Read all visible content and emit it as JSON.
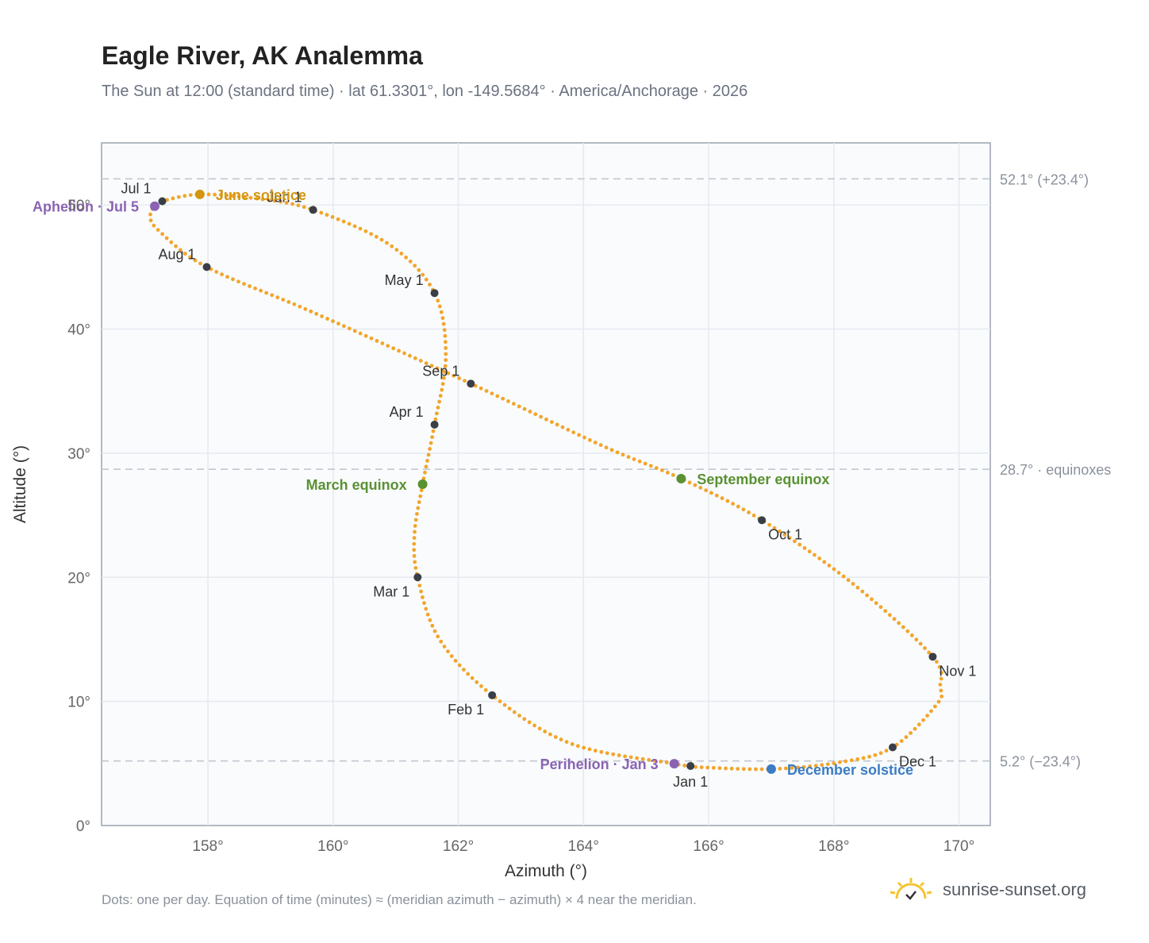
{
  "title": "Eagle River, AK Analemma",
  "subtitle": "The Sun at 12:00 (standard time) · lat 61.3301°, lon -149.5684° · America/Anchorage · 2026",
  "footnote": "Dots: one per day. Equation of time (minutes) ≈ (meridian azimuth − azimuth) × 4 near the meridian.",
  "brand": {
    "name": "sunrise-sunset.org",
    "logo_icon": "sun-check-icon"
  },
  "colors": {
    "curve": "#f2a52b",
    "month_marker": "#3a3f47",
    "solstice_june": "#d4960f",
    "solstice_december": "#3b7cc4",
    "equinox": "#5a9132",
    "apsis": "#8a63b3",
    "reference_line": "#c3c8d0",
    "plot_background": "#f9fbfd",
    "grid": "#e6eaef"
  },
  "chart_data": {
    "type": "scatter",
    "xlabel": "Azimuth (°)",
    "ylabel": "Altitude (°)",
    "xlim": [
      156.3,
      170.5
    ],
    "ylim": [
      0,
      55
    ],
    "x_ticks": [
      158,
      160,
      162,
      164,
      166,
      168,
      170
    ],
    "x_tick_labels": [
      "158°",
      "160°",
      "162°",
      "164°",
      "166°",
      "168°",
      "170°"
    ],
    "y_ticks": [
      0,
      10,
      20,
      30,
      40,
      50
    ],
    "y_tick_labels": [
      "0°",
      "10°",
      "20°",
      "30°",
      "40°",
      "50°"
    ],
    "grid": true,
    "analemma_path": [
      {
        "date": "Jan 1",
        "az": 165.71,
        "alt": 4.8
      },
      {
        "date": "Jan 3",
        "az": 165.45,
        "alt": 4.98
      },
      {
        "date": "Jan 15",
        "az": 163.8,
        "alt": 6.6
      },
      {
        "date": "Feb 1",
        "az": 162.54,
        "alt": 10.5
      },
      {
        "date": "Feb 15",
        "az": 161.7,
        "alt": 15.0
      },
      {
        "date": "Mar 1",
        "az": 161.35,
        "alt": 20.0
      },
      {
        "date": "Mar 10",
        "az": 161.3,
        "alt": 23.5
      },
      {
        "date": "Mar 20",
        "az": 161.43,
        "alt": 27.5
      },
      {
        "date": "Apr 1",
        "az": 161.62,
        "alt": 32.3
      },
      {
        "date": "Apr 15",
        "az": 161.8,
        "alt": 37.8
      },
      {
        "date": "May 1",
        "az": 161.62,
        "alt": 42.9
      },
      {
        "date": "May 15",
        "az": 160.9,
        "alt": 46.8
      },
      {
        "date": "Jun 1",
        "az": 159.68,
        "alt": 49.6
      },
      {
        "date": "Jun 10",
        "az": 158.8,
        "alt": 50.5
      },
      {
        "date": "Jun 21",
        "az": 157.87,
        "alt": 50.85
      },
      {
        "date": "Jul 1",
        "az": 157.27,
        "alt": 50.3
      },
      {
        "date": "Jul 5",
        "az": 157.15,
        "alt": 49.9
      },
      {
        "date": "Jul 10",
        "az": 157.08,
        "alt": 49.2
      },
      {
        "date": "Jul 15",
        "az": 157.2,
        "alt": 48.0
      },
      {
        "date": "Aug 1",
        "az": 157.98,
        "alt": 45.0
      },
      {
        "date": "Aug 15",
        "az": 159.7,
        "alt": 41.3
      },
      {
        "date": "Sep 1",
        "az": 162.2,
        "alt": 35.6
      },
      {
        "date": "Sep 15",
        "az": 164.3,
        "alt": 30.6
      },
      {
        "date": "Sep 22",
        "az": 165.56,
        "alt": 27.95
      },
      {
        "date": "Oct 1",
        "az": 166.85,
        "alt": 24.6
      },
      {
        "date": "Oct 15",
        "az": 168.3,
        "alt": 19.5
      },
      {
        "date": "Nov 1",
        "az": 169.58,
        "alt": 13.6
      },
      {
        "date": "Nov 10",
        "az": 169.7,
        "alt": 11.2
      },
      {
        "date": "Nov 15",
        "az": 169.65,
        "alt": 9.8
      },
      {
        "date": "Dec 1",
        "az": 168.94,
        "alt": 6.3
      },
      {
        "date": "Dec 10",
        "az": 168.1,
        "alt": 5.1
      },
      {
        "date": "Dec 21",
        "az": 167.0,
        "alt": 4.55
      },
      {
        "date": "Dec 31",
        "az": 165.85,
        "alt": 4.7
      }
    ],
    "month_markers": [
      {
        "label": "Jan 1",
        "az": 165.71,
        "alt": 4.8,
        "pos": "below"
      },
      {
        "label": "Feb 1",
        "az": 162.54,
        "alt": 10.5,
        "pos": "below-left"
      },
      {
        "label": "Mar 1",
        "az": 161.35,
        "alt": 20.0,
        "pos": "below-left"
      },
      {
        "label": "Apr 1",
        "az": 161.62,
        "alt": 32.3,
        "pos": "above-left"
      },
      {
        "label": "May 1",
        "az": 161.62,
        "alt": 42.9,
        "pos": "above-left"
      },
      {
        "label": "Jun 1",
        "az": 159.68,
        "alt": 49.6,
        "pos": "above-left"
      },
      {
        "label": "Jul 1",
        "az": 157.27,
        "alt": 50.3,
        "pos": "above-left"
      },
      {
        "label": "Aug 1",
        "az": 157.98,
        "alt": 45.0,
        "pos": "above-left"
      },
      {
        "label": "Sep 1",
        "az": 162.2,
        "alt": 35.6,
        "pos": "above-left"
      },
      {
        "label": "Oct 1",
        "az": 166.85,
        "alt": 24.6,
        "pos": "below-right"
      },
      {
        "label": "Nov 1",
        "az": 169.58,
        "alt": 13.6,
        "pos": "below-right"
      },
      {
        "label": "Dec 1",
        "az": 168.94,
        "alt": 6.3,
        "pos": "below-right"
      }
    ],
    "events": [
      {
        "label": "June solstice",
        "az": 157.87,
        "alt": 50.85,
        "color_key": "solstice_june",
        "anchor": "start"
      },
      {
        "label": "December solstice",
        "az": 167.0,
        "alt": 4.55,
        "color_key": "solstice_december",
        "anchor": "start"
      },
      {
        "label": "March equinox",
        "az": 161.43,
        "alt": 27.5,
        "color_key": "equinox",
        "anchor": "end"
      },
      {
        "label": "September equinox",
        "az": 165.56,
        "alt": 27.95,
        "color_key": "equinox",
        "anchor": "start"
      },
      {
        "label": "Aphelion · Jul 5",
        "az": 157.15,
        "alt": 49.9,
        "color_key": "apsis",
        "anchor": "end"
      },
      {
        "label": "Perihelion · Jan 3",
        "az": 165.45,
        "alt": 4.98,
        "color_key": "apsis",
        "anchor": "end"
      }
    ],
    "reference_lines": [
      {
        "alt": 52.1,
        "label": "52.1° (+23.4°)"
      },
      {
        "alt": 28.7,
        "label": "28.7° · equinoxes"
      },
      {
        "alt": 5.2,
        "label": "5.2° (−23.4°)"
      }
    ]
  }
}
